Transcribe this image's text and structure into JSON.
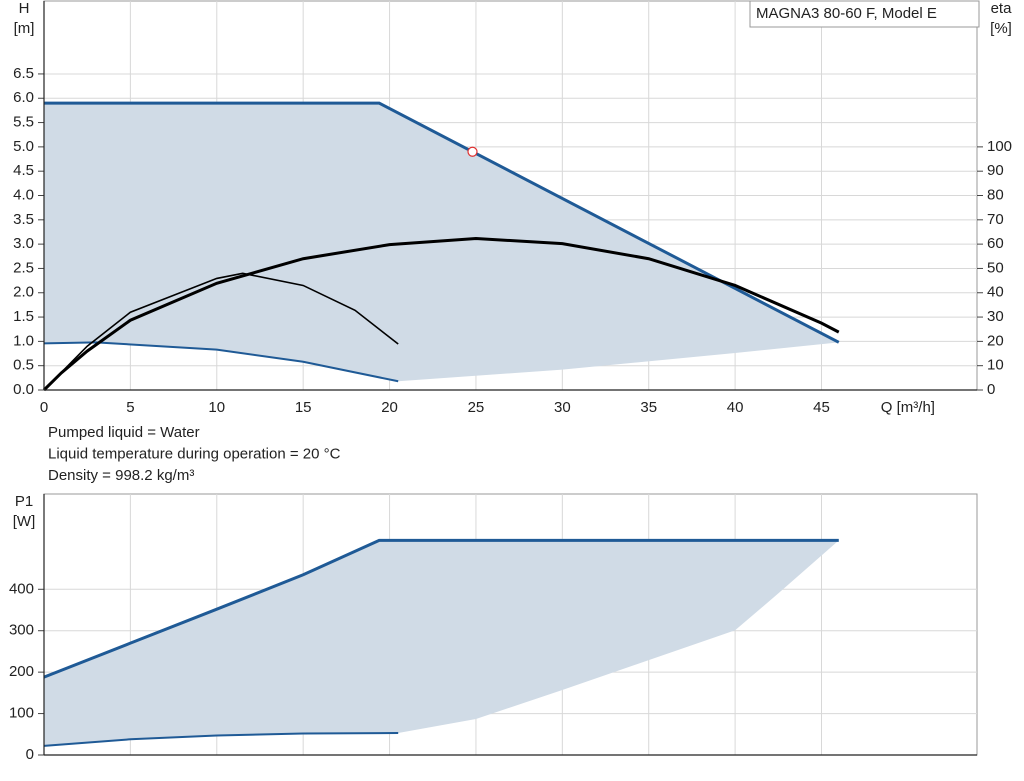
{
  "chart_data": [
    {
      "type": "line",
      "title": "MAGNA3 80-60 F, Model E",
      "ylabel": [
        "H",
        "[m]"
      ],
      "y2label": [
        "eta",
        "[%]"
      ],
      "xlabel": "Q [m³/h]",
      "notes": [
        "Pumped liquid = Water",
        "Liquid temperature during operation = 20 °C",
        "Density = 998.2 kg/m³"
      ],
      "xlim": [
        0,
        54
      ],
      "xticks": [
        0,
        5,
        10,
        15,
        20,
        25,
        30,
        35,
        40,
        45
      ],
      "ylim": [
        0,
        8
      ],
      "yticks": [
        {
          "value": 0,
          "label": "0.0"
        },
        0.5,
        {
          "value": 1,
          "label": "1.0"
        },
        1.5,
        {
          "value": 2,
          "label": "2.0"
        },
        2.5,
        {
          "value": 3,
          "label": "3.0"
        },
        3.5,
        {
          "value": 4,
          "label": "4.0"
        },
        4.5,
        {
          "value": 5,
          "label": "5.0"
        },
        5.5,
        {
          "value": 6,
          "label": "6.0"
        },
        6.5
      ],
      "y2lim": [
        0,
        160
      ],
      "y2ticks": [
        0,
        10,
        20,
        30,
        40,
        50,
        60,
        70,
        80,
        90,
        100
      ],
      "grid": true,
      "region": {
        "color": "#d0dbe6",
        "x": [
          0,
          19.4,
          46,
          40,
          30,
          20.5,
          15,
          10,
          3,
          0
        ],
        "values": [
          5.9,
          5.9,
          0.98,
          0.76,
          0.42,
          0.18,
          0.58,
          0.83,
          0.98,
          0.96
        ]
      },
      "series": [
        {
          "color": "#1f5a96",
          "width": 3,
          "x": [
            0,
            19.4,
            46
          ],
          "values": [
            5.9,
            5.9,
            0.98
          ]
        },
        {
          "color": "#1f5a96",
          "width": 2,
          "x": [
            0,
            3,
            10,
            15,
            20.5
          ],
          "values": [
            0.96,
            0.98,
            0.83,
            0.58,
            0.18
          ]
        },
        {
          "color": "#000000",
          "width": 3,
          "axis": "y2",
          "x": [
            0,
            1,
            2.5,
            5,
            10,
            15,
            20,
            25,
            30,
            35,
            40,
            45,
            46
          ],
          "values": [
            0,
            7,
            16,
            28.7,
            43.9,
            54,
            59.8,
            62.3,
            60.2,
            54,
            43,
            27.5,
            23.8
          ]
        },
        {
          "color": "#000000",
          "width": 1.6,
          "axis": "y2",
          "x": [
            0,
            2.5,
            5,
            10,
            11.5,
            15,
            18,
            20.5
          ],
          "values": [
            0,
            18,
            32,
            45.9,
            48,
            43,
            32.8,
            18.9
          ]
        }
      ],
      "operating_point": {
        "x": 24.8,
        "y": 4.9,
        "color": "#e03030"
      }
    },
    {
      "type": "line",
      "ylabel": [
        "P1",
        "[W]"
      ],
      "xlim": [
        0,
        54
      ],
      "ylim": [
        0,
        630
      ],
      "yticks": [
        0,
        100,
        200,
        300,
        400
      ],
      "grid": true,
      "region": {
        "color": "#d0dbe6",
        "x": [
          0,
          5,
          10,
          15,
          19.4,
          46,
          42.5,
          40,
          35,
          30,
          25,
          20.5,
          15,
          10,
          5,
          0
        ],
        "values": [
          188,
          270,
          352,
          435,
          518,
          518,
          390,
          301,
          229,
          157,
          87,
          53,
          52,
          47,
          38,
          22
        ]
      },
      "series": [
        {
          "color": "#1f5a96",
          "width": 3,
          "x": [
            0,
            5,
            10,
            15,
            19.4,
            46
          ],
          "values": [
            188,
            270,
            352,
            435,
            518,
            518
          ]
        },
        {
          "color": "#1f5a96",
          "width": 2,
          "x": [
            0,
            5,
            10,
            15,
            20.5
          ],
          "values": [
            22,
            38,
            47,
            52,
            53
          ]
        }
      ]
    }
  ]
}
